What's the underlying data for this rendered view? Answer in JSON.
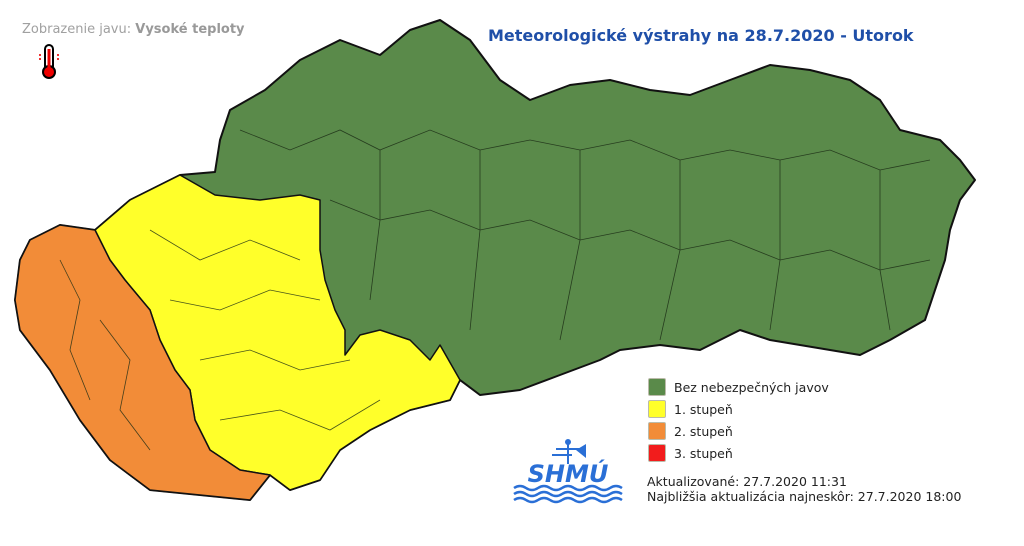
{
  "caption": {
    "label": "Zobrazenie javu:",
    "phenomenon": "Vysoké teploty",
    "icon": "thermometer-icon"
  },
  "title": "Meteorologické výstrahy na 28.7.2020 - Utorok",
  "legend": [
    {
      "label": "Bez nebezpečných javov",
      "color": "#5a8a4a"
    },
    {
      "label": "1. stupeň",
      "color": "#ffff2a"
    },
    {
      "label": "2. stupeň",
      "color": "#f28c38"
    },
    {
      "label": "3. stupeň",
      "color": "#f21c1c"
    }
  ],
  "regions": {
    "west": "2. stupeň",
    "central-west": "1. stupeň",
    "north-east": "Bez nebezpečných javov"
  },
  "updated": "Aktualizované: 27.7.2020 11:31",
  "next_update": "Najbližšia aktualizácia najneskôr: 27.7.2020 18:00",
  "logo": "SHMÚ"
}
